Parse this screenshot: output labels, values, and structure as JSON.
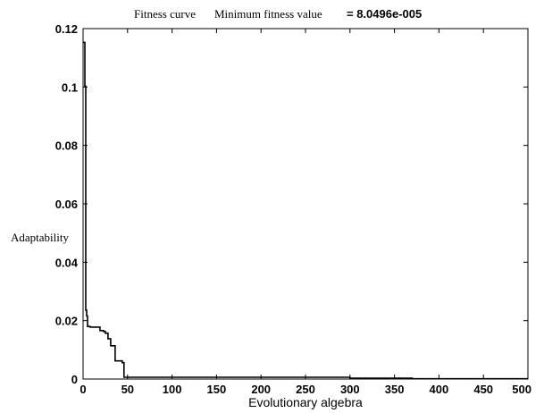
{
  "chart_data": {
    "type": "line",
    "title_parts": [
      "Fitness curve",
      "Minimum fitness value",
      "= 8.0496e-005"
    ],
    "xlabel": "Evolutionary algebra",
    "ylabel": "Adaptability",
    "xlim": [
      0,
      500
    ],
    "ylim": [
      0,
      0.12
    ],
    "x_ticks": [
      0,
      50,
      100,
      150,
      200,
      250,
      300,
      350,
      400,
      450,
      500
    ],
    "x_tick_labels": [
      "0",
      "50",
      "100",
      "150",
      "200",
      "250",
      "300",
      "350",
      "400",
      "450",
      "500"
    ],
    "y_ticks": [
      0,
      0.02,
      0.04,
      0.06,
      0.08,
      0.1,
      0.12
    ],
    "y_tick_labels": [
      "0",
      "0.02",
      "0.04",
      "0.06",
      "0.08",
      "0.1",
      "0.12"
    ],
    "grid": false,
    "step": true,
    "series": [
      {
        "color": "#000000",
        "x": [
          0,
          2,
          3,
          4,
          5,
          8,
          19,
          23,
          25,
          28,
          31,
          36,
          44,
          46,
          300,
          370,
          500
        ],
        "y": [
          0.1153,
          0.1003,
          0.0236,
          0.0216,
          0.018,
          0.0178,
          0.0166,
          0.0163,
          0.0157,
          0.0138,
          0.0114,
          0.0062,
          0.0056,
          0.0006,
          0.0003,
          0.0001,
          0.0001
        ]
      }
    ]
  }
}
